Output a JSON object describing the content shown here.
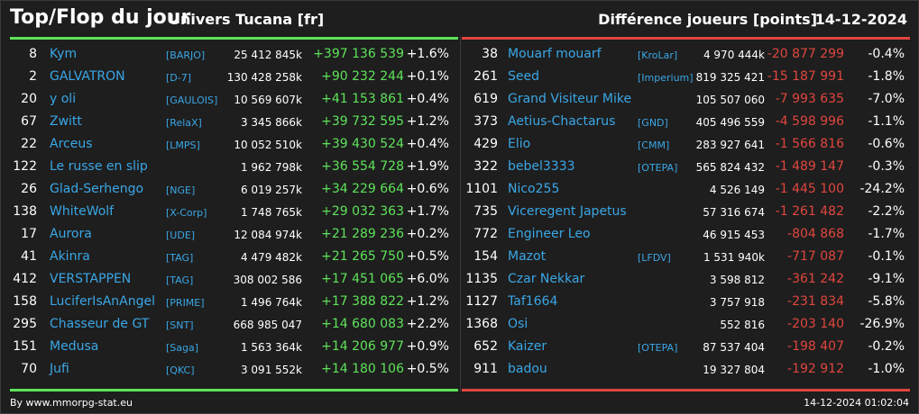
{
  "header": {
    "title": "Top/Flop du jour",
    "universe": "Univers Tucana [fr]",
    "diff_label": "Différence joueurs [points]",
    "date": "14-12-2024"
  },
  "top": [
    {
      "rank": "8",
      "name": "Kym",
      "tag": "[BARJO]",
      "points": "25 412 845k",
      "diff": "+397 136 539",
      "pct": "+1.6%"
    },
    {
      "rank": "2",
      "name": "GALVATRON",
      "tag": "[D-7]",
      "points": "130 428 258k",
      "diff": "+90 232 244",
      "pct": "+0.1%"
    },
    {
      "rank": "20",
      "name": "y oli",
      "tag": "[GAULOIS]",
      "points": "10 569 607k",
      "diff": "+41 153 861",
      "pct": "+0.4%"
    },
    {
      "rank": "67",
      "name": "Zwitt",
      "tag": "[RelaX]",
      "points": "3 345 866k",
      "diff": "+39 732 595",
      "pct": "+1.2%"
    },
    {
      "rank": "22",
      "name": "Arceus",
      "tag": "[LMPS]",
      "points": "10 052 510k",
      "diff": "+39 430 524",
      "pct": "+0.4%"
    },
    {
      "rank": "122",
      "name": "Le russe en slip",
      "tag": "",
      "points": "1 962 798k",
      "diff": "+36 554 728",
      "pct": "+1.9%"
    },
    {
      "rank": "26",
      "name": "Glad-Serhengo",
      "tag": "[NGE]",
      "points": "6 019 257k",
      "diff": "+34 229 664",
      "pct": "+0.6%"
    },
    {
      "rank": "138",
      "name": "WhiteWolf",
      "tag": "[X-Corp]",
      "points": "1 748 765k",
      "diff": "+29 032 363",
      "pct": "+1.7%"
    },
    {
      "rank": "17",
      "name": "Aurora",
      "tag": "[UDE]",
      "points": "12 084 974k",
      "diff": "+21 289 236",
      "pct": "+0.2%"
    },
    {
      "rank": "41",
      "name": "Akinra",
      "tag": "[TAG]",
      "points": "4 479 482k",
      "diff": "+21 265 750",
      "pct": "+0.5%"
    },
    {
      "rank": "412",
      "name": "VERSTAPPEN",
      "tag": "[TAG]",
      "points": "308 002 586",
      "diff": "+17 451 065",
      "pct": "+6.0%"
    },
    {
      "rank": "158",
      "name": "LuciferIsAnAngel",
      "tag": "[PRIME]",
      "points": "1 496 764k",
      "diff": "+17 388 822",
      "pct": "+1.2%"
    },
    {
      "rank": "295",
      "name": "Chasseur de GT",
      "tag": "[SNT]",
      "points": "668 985 047",
      "diff": "+14 680 083",
      "pct": "+2.2%"
    },
    {
      "rank": "151",
      "name": "Medusa",
      "tag": "[Saga]",
      "points": "1 563 364k",
      "diff": "+14 206 977",
      "pct": "+0.9%"
    },
    {
      "rank": "70",
      "name": "Jufi",
      "tag": "[QKC]",
      "points": "3 091 552k",
      "diff": "+14 180 106",
      "pct": "+0.5%"
    }
  ],
  "flop": [
    {
      "rank": "38",
      "name": "Mouarf mouarf",
      "tag": "[KroLar]",
      "points": "4 970 444k",
      "diff": "-20 877 299",
      "pct": "-0.4%"
    },
    {
      "rank": "261",
      "name": "Seed",
      "tag": "[Imperium]",
      "points": "819 325 421",
      "diff": "-15 187 991",
      "pct": "-1.8%"
    },
    {
      "rank": "619",
      "name": "Grand Visiteur Mike",
      "tag": "",
      "points": "105 507 060",
      "diff": "-7 993 635",
      "pct": "-7.0%"
    },
    {
      "rank": "373",
      "name": "Aetius-Chactarus",
      "tag": "[GND]",
      "points": "405 496 559",
      "diff": "-4 598 996",
      "pct": "-1.1%"
    },
    {
      "rank": "429",
      "name": "Elio",
      "tag": "[CMM]",
      "points": "283 927 641",
      "diff": "-1 566 816",
      "pct": "-0.6%"
    },
    {
      "rank": "322",
      "name": "bebel3333",
      "tag": "[OTEPA]",
      "points": "565 824 432",
      "diff": "-1 489 147",
      "pct": "-0.3%"
    },
    {
      "rank": "1101",
      "name": "Nico255",
      "tag": "",
      "points": "4 526 149",
      "diff": "-1 445 100",
      "pct": "-24.2%"
    },
    {
      "rank": "735",
      "name": "Viceregent Japetus",
      "tag": "",
      "points": "57 316 674",
      "diff": "-1 261 482",
      "pct": "-2.2%"
    },
    {
      "rank": "772",
      "name": "Engineer Leo",
      "tag": "",
      "points": "46 915 453",
      "diff": "-804 868",
      "pct": "-1.7%"
    },
    {
      "rank": "154",
      "name": "Mazot",
      "tag": "[LFDV]",
      "points": "1 531 940k",
      "diff": "-717 087",
      "pct": "-0.1%"
    },
    {
      "rank": "1135",
      "name": "Czar Nekkar",
      "tag": "",
      "points": "3 598 812",
      "diff": "-361 242",
      "pct": "-9.1%"
    },
    {
      "rank": "1127",
      "name": "Taf1664",
      "tag": "",
      "points": "3 757 918",
      "diff": "-231 834",
      "pct": "-5.8%"
    },
    {
      "rank": "1368",
      "name": "Osi",
      "tag": "",
      "points": "552 816",
      "diff": "-203 140",
      "pct": "-26.9%"
    },
    {
      "rank": "652",
      "name": "Kaizer",
      "tag": "[OTEPA]",
      "points": "87 537 404",
      "diff": "-198 407",
      "pct": "-0.2%"
    },
    {
      "rank": "911",
      "name": "badou",
      "tag": "",
      "points": "19 327 804",
      "diff": "-192 912",
      "pct": "-1.0%"
    }
  ],
  "footer": {
    "source": "By www.mmorpg-stat.eu",
    "timestamp": "14-12-2024 01:02:04"
  },
  "colors": {
    "positive": "#5ee35a",
    "negative": "#e0463e",
    "link": "#3aa7e6"
  }
}
